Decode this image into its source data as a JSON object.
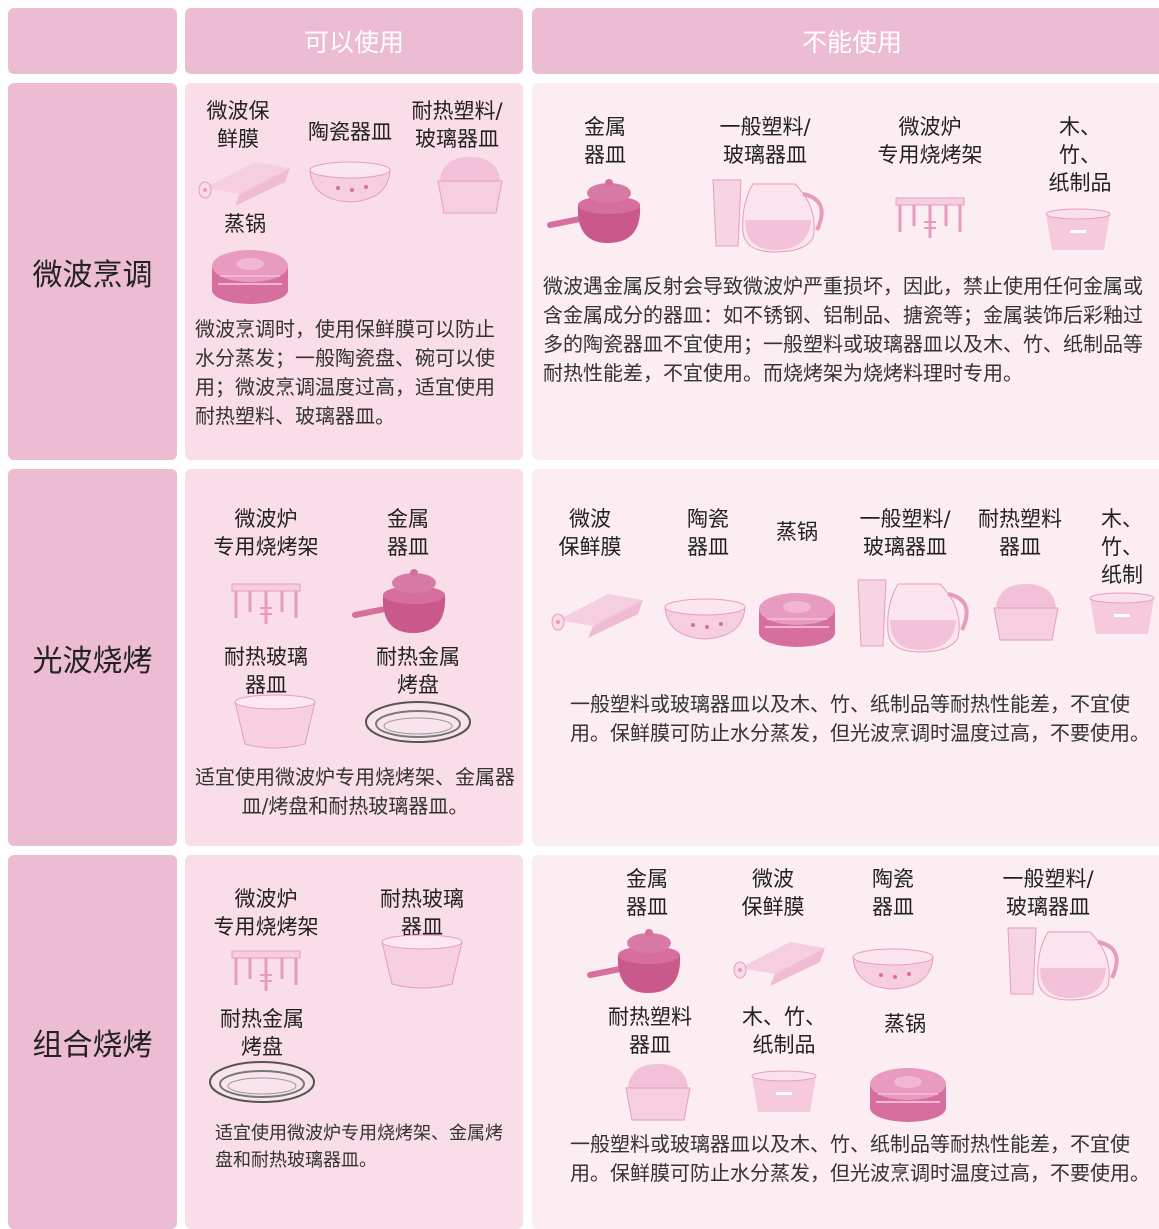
{
  "header": {
    "columns": [
      "可以使用",
      "不能使用"
    ]
  },
  "rows": [
    {
      "mode": "微波烹调",
      "allowed": {
        "items": [
          "微波保\n鲜膜",
          "陶瓷器皿",
          "耐热塑料/\n玻璃器皿",
          "蒸锅"
        ],
        "note": "微波烹调时，使用保鲜膜可以防止水分蒸发；一般陶瓷盘、碗可以使用；微波烹调温度过高，适宜使用耐热塑料、玻璃器皿。"
      },
      "forbidden": {
        "items": [
          "金属\n器皿",
          "一般塑料/\n玻璃器皿",
          "微波炉\n专用烧烤架",
          "木、竹、\n纸制品"
        ],
        "note": "微波遇金属反射会导致微波炉严重损坏，因此，禁止使用任何金属或含金属成分的器皿：如不锈钢、铝制品、搪瓷等；金属装饰后彩釉过多的陶瓷器皿不宜使用；一般塑料或玻璃器皿以及木、竹、纸制品等耐热性能差，不宜使用。而烧烤架为烧烤料理时专用。"
      }
    },
    {
      "mode": "光波烧烤",
      "allowed": {
        "items": [
          "微波炉\n专用烧烤架",
          "金属\n器皿",
          "耐热玻璃\n器皿",
          "耐热金属\n烤盘"
        ],
        "note": "适宜使用微波炉专用烧烤架、金属器皿/烤盘和耐热玻璃器皿。"
      },
      "forbidden": {
        "items": [
          "微波\n保鲜膜",
          "陶瓷\n器皿",
          "蒸锅",
          "一般塑料/\n玻璃器皿",
          "耐热塑料\n器皿",
          "木、竹、\n纸制品"
        ],
        "note": "一般塑料或玻璃器皿以及木、竹、纸制品等耐热性能差，不宜使用。保鲜膜可防止水分蒸发，但光波烹调时温度过高，不要使用。"
      }
    },
    {
      "mode": "组合烧烤",
      "allowed": {
        "items": [
          "微波炉\n专用烧烤架",
          "耐热玻璃\n器皿",
          "耐热金属\n烤盘"
        ],
        "note": "适宜使用微波炉专用烧烤架、金属烤盘和耐热玻璃器皿。"
      },
      "forbidden": {
        "items": [
          "金属\n器皿",
          "微波\n保鲜膜",
          "陶瓷\n器皿",
          "一般塑料/\n玻璃器皿",
          "耐热塑料\n器皿",
          "木、竹、\n纸制品",
          "蒸锅"
        ],
        "note": "一般塑料或玻璃器皿以及木、竹、纸制品等耐热性能差，不宜使用。保鲜膜可防止水分蒸发，但光波烹调时温度过高，不要使用。"
      }
    }
  ]
}
